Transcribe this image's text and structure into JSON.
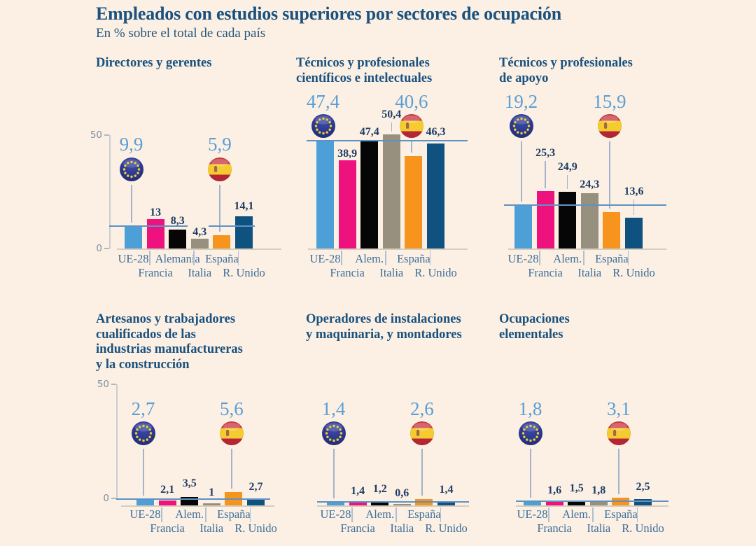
{
  "header": {
    "title": "Empleados con estudios superiores por sectores de ocupación",
    "subtitle": "En % sobre el total de cada país"
  },
  "colors": {
    "background": "#FBF0E3",
    "title": "#1A517F",
    "big_number": "#5B9ED6",
    "value_label": "#1E3C66",
    "x_label": "#3D6D9B",
    "axis_label": "#7E8FA8",
    "reference_line": "#5E92C3",
    "connector": "#A3B3C9",
    "baseline": "#D5CDBE",
    "series_colors": [
      "#4D9FD8",
      "#EE127F",
      "#060606",
      "#97907E",
      "#F7941D",
      "#10527F"
    ]
  },
  "highlights": [
    {
      "index": 0,
      "flag": "eu"
    },
    {
      "index": 4,
      "flag": "spain"
    }
  ],
  "chart_data": [
    {
      "type": "bar",
      "title": "Directores y gerentes",
      "title_lines": [
        "Directores y gerentes"
      ],
      "categories": [
        "UE-28",
        "Francia",
        "Alemania",
        "Italia",
        "España",
        "R. Unido"
      ],
      "values": [
        9.9,
        13,
        8.3,
        4.3,
        5.9,
        14.1
      ],
      "value_labels": [
        "9,9",
        "13",
        "8,3",
        "4,3",
        "5,9",
        "14,1"
      ],
      "axis_ticks": [
        "50",
        "0"
      ],
      "ylim": [
        0,
        50
      ],
      "reference_line": 9.9
    },
    {
      "type": "bar",
      "title": "Técnicos y profesionales científicos e intelectuales",
      "title_lines": [
        "Técnicos y profesionales",
        "científicos e intelectuales"
      ],
      "categories": [
        "UE-28",
        "Francia",
        "Alem.",
        "Italia",
        "España",
        "R. Unido"
      ],
      "values": [
        47.4,
        38.9,
        47.4,
        50.4,
        40.6,
        46.3
      ],
      "value_labels": [
        "47,4",
        "38,9",
        "47,4",
        "50,4",
        "40,6",
        "46,3"
      ],
      "axis_ticks": [],
      "ylim": [
        0,
        50
      ],
      "reference_line": 47.4
    },
    {
      "type": "bar",
      "title": "Técnicos y profesionales de apoyo",
      "title_lines": [
        "Técnicos y profesionales",
        "de apoyo"
      ],
      "categories": [
        "UE-28",
        "Francia",
        "Alem.",
        "Italia",
        "España",
        "R. Unido"
      ],
      "values": [
        19.2,
        25.3,
        24.9,
        24.3,
        15.9,
        13.6
      ],
      "value_labels": [
        "19,2",
        "25,3",
        "24,9",
        "24,3",
        "15,9",
        "13,6"
      ],
      "axis_ticks": [],
      "ylim": [
        0,
        50
      ],
      "reference_line": 19.2
    },
    {
      "type": "bar",
      "title": "Artesanos y trabajadores cualificados de las industrias manufactureras y la construcción",
      "title_lines": [
        "Artesanos y trabajadores",
        "cualificados de las",
        "industrias manufactureras",
        "y la construcción"
      ],
      "categories": [
        "UE-28",
        "Francia",
        "Alem.",
        "Italia",
        "España",
        "R. Unido"
      ],
      "values": [
        2.7,
        2.1,
        3.5,
        1,
        5.6,
        2.7
      ],
      "value_labels": [
        "2,7",
        "2,1",
        "3,5",
        "1",
        "5,6",
        "2,7"
      ],
      "axis_ticks": [
        "50",
        "0"
      ],
      "ylim": [
        0,
        50
      ],
      "reference_line": 2.7
    },
    {
      "type": "bar",
      "title": "Operadores de instalaciones y maquinaria, y montadores",
      "title_lines": [
        "Operadores de instalaciones",
        "y maquinaria, y montadores"
      ],
      "categories": [
        "UE-28",
        "Francia",
        "Alem.",
        "Italia",
        "España",
        "R. Unido"
      ],
      "values": [
        1.4,
        1.4,
        1.2,
        0.6,
        2.6,
        1.4
      ],
      "value_labels": [
        "1,4",
        "1,4",
        "1,2",
        "0,6",
        "2,6",
        "1,4"
      ],
      "axis_ticks": [],
      "ylim": [
        0,
        50
      ],
      "reference_line": 1.4
    },
    {
      "type": "bar",
      "title": "Ocupaciones elementales",
      "title_lines": [
        "Ocupaciones",
        "elementales"
      ],
      "categories": [
        "UE-28",
        "Francia",
        "Alem.",
        "Italia",
        "España",
        "R. Unido"
      ],
      "values": [
        1.8,
        1.6,
        1.5,
        1.8,
        3.1,
        2.5
      ],
      "value_labels": [
        "1,8",
        "1,6",
        "1,5",
        "1,8",
        "3,1",
        "2,5"
      ],
      "axis_ticks": [],
      "ylim": [
        0,
        50
      ],
      "reference_line": 1.8
    }
  ]
}
